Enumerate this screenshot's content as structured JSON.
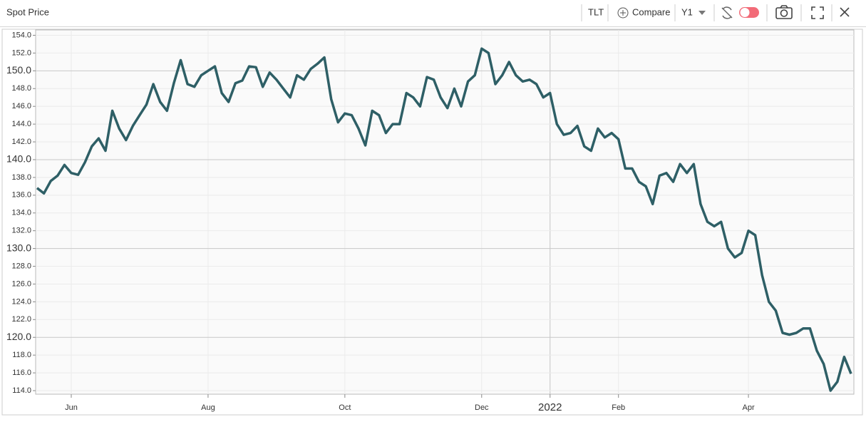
{
  "toolbar": {
    "ticker": "TLT",
    "compare": "Compare",
    "range": "Y1"
  },
  "chart_data": {
    "type": "line",
    "title": "Spot Price",
    "categories": [
      null,
      null,
      null,
      null,
      null,
      "Jun",
      null,
      null,
      null,
      null,
      null,
      null,
      null,
      null,
      null,
      null,
      null,
      null,
      null,
      null,
      null,
      null,
      null,
      null,
      null,
      "Aug",
      null,
      null,
      null,
      null,
      null,
      null,
      null,
      null,
      null,
      null,
      null,
      null,
      null,
      null,
      null,
      null,
      null,
      null,
      null,
      "Oct",
      null,
      null,
      null,
      null,
      null,
      null,
      null,
      null,
      null,
      null,
      null,
      null,
      null,
      null,
      null,
      null,
      null,
      null,
      null,
      "Dec",
      null,
      null,
      null,
      null,
      null,
      null,
      null,
      null,
      null,
      "2022",
      null,
      null,
      null,
      null,
      null,
      null,
      null,
      null,
      null,
      "Feb",
      null,
      null,
      null,
      null,
      null,
      null,
      null,
      null,
      null,
      null,
      null,
      null,
      null,
      null,
      null,
      null,
      null,
      null,
      "Apr",
      null,
      null,
      null,
      null,
      null,
      null,
      null,
      null,
      null,
      null,
      null,
      null,
      null,
      null,
      null
    ],
    "series": [
      {
        "name": "TLT",
        "color": "#2e5f66",
        "values": [
          136.8,
          136.2,
          137.6,
          138.2,
          139.4,
          138.5,
          138.3,
          139.7,
          141.5,
          142.4,
          141.0,
          145.5,
          143.5,
          142.2,
          143.8,
          145.0,
          146.2,
          148.5,
          146.5,
          145.5,
          148.6,
          151.2,
          148.5,
          148.2,
          149.5,
          150.0,
          150.5,
          147.5,
          146.5,
          148.6,
          148.9,
          150.5,
          150.4,
          148.2,
          149.8,
          149.0,
          148.0,
          147.0,
          149.5,
          149.0,
          150.2,
          150.8,
          151.5,
          146.8,
          144.2,
          145.2,
          145.0,
          143.5,
          141.6,
          145.5,
          145.0,
          143.0,
          144.0,
          144.0,
          147.5,
          147.0,
          146.0,
          149.3,
          149.0,
          147.0,
          145.8,
          148.0,
          146.0,
          148.8,
          149.5,
          152.5,
          152.0,
          148.5,
          149.5,
          151.0,
          149.5,
          148.8,
          149.0,
          148.5,
          147.0,
          147.5,
          144.0,
          142.8,
          143.0,
          143.8,
          141.5,
          141.0,
          143.5,
          142.5,
          143.0,
          142.3,
          139.0,
          139.0,
          137.5,
          137.0,
          135.0,
          138.2,
          138.5,
          137.5,
          139.5,
          138.5,
          139.5,
          135.0,
          133.0,
          132.5,
          133.0,
          130.0,
          129.0,
          129.5,
          132.0,
          131.5,
          127.0,
          124.0,
          123.0,
          120.5,
          120.3,
          120.5,
          121.0,
          121.0,
          118.5,
          117.0,
          114.0,
          115.0,
          117.8,
          115.9
        ]
      }
    ],
    "ylim": [
      113.6,
      154.6
    ],
    "yticks": [
      {
        "value": 114,
        "label": "114.0"
      },
      {
        "value": 116,
        "label": "116.0"
      },
      {
        "value": 118,
        "label": "118.0"
      },
      {
        "value": 120,
        "label": "120.0"
      },
      {
        "value": 122,
        "label": "122.0"
      },
      {
        "value": 124,
        "label": "124.0"
      },
      {
        "value": 126,
        "label": "126.0"
      },
      {
        "value": 128,
        "label": "128.0"
      },
      {
        "value": 130,
        "label": "130.0"
      },
      {
        "value": 132,
        "label": "132.0"
      },
      {
        "value": 134,
        "label": "134.0"
      },
      {
        "value": 136,
        "label": "136.0"
      },
      {
        "value": 138,
        "label": "138.0"
      },
      {
        "value": 140,
        "label": "140.0"
      },
      {
        "value": 142,
        "label": "142.0"
      },
      {
        "value": 144,
        "label": "144.0"
      },
      {
        "value": 146,
        "label": "146.0"
      },
      {
        "value": 148,
        "label": "148.0"
      },
      {
        "value": 150,
        "label": "150.0"
      },
      {
        "value": 152,
        "label": "152.0"
      },
      {
        "value": 154,
        "label": "154.0"
      }
    ],
    "grid": true
  }
}
